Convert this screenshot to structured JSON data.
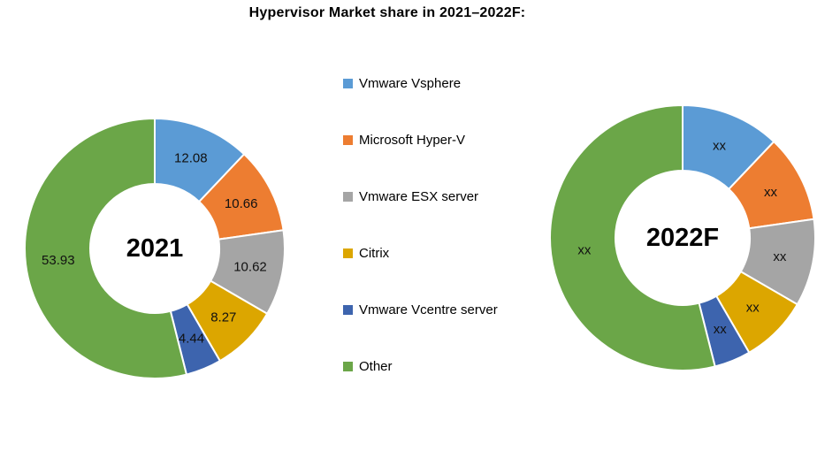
{
  "title": "Hypervisor Market share in 2021–2022F:",
  "legend": {
    "items": [
      {
        "label": "Vmware Vsphere",
        "color": "#5B9BD5"
      },
      {
        "label": "Microsoft Hyper-V",
        "color": "#ED7D31"
      },
      {
        "label": "Vmware ESX server",
        "color": "#A5A5A5"
      },
      {
        "label": "Citrix",
        "color": "#DCA600"
      },
      {
        "label": "Vmware Vcentre server",
        "color": "#3D64AE"
      },
      {
        "label": "Other",
        "color": "#6BA648"
      }
    ]
  },
  "chart_data": [
    {
      "type": "pie",
      "subtype": "donut",
      "center_label": "2021",
      "categories": [
        "Vmware Vsphere",
        "Microsoft Hyper-V",
        "Vmware ESX server",
        "Citrix",
        "Vmware Vcentre server",
        "Other"
      ],
      "values": [
        12.08,
        10.66,
        10.62,
        8.27,
        4.44,
        53.93
      ],
      "data_labels": [
        "12.08",
        "10.66",
        "10.62",
        "8.27",
        "4.44",
        "53.93"
      ],
      "colors": [
        "#5B9BD5",
        "#ED7D31",
        "#A5A5A5",
        "#DCA600",
        "#3D64AE",
        "#6BA648"
      ],
      "start_angle_deg": 0,
      "direction": "clockwise",
      "legend_position": "center-between-charts"
    },
    {
      "type": "pie",
      "subtype": "donut",
      "center_label": "2022F",
      "categories": [
        "Vmware Vsphere",
        "Microsoft Hyper-V",
        "Vmware ESX server",
        "Citrix",
        "Vmware Vcentre server",
        "Other"
      ],
      "values": [
        12.08,
        10.66,
        10.62,
        8.27,
        4.44,
        53.93
      ],
      "note": "numeric values are masked on this chart; every slice is labelled xx, proportions drawn matching 2021",
      "data_labels": [
        "xx",
        "xx",
        "xx",
        "xx",
        "xx",
        "xx"
      ],
      "colors": [
        "#5B9BD5",
        "#ED7D31",
        "#A5A5A5",
        "#DCA600",
        "#3D64AE",
        "#6BA648"
      ],
      "start_angle_deg": 0,
      "direction": "clockwise"
    }
  ]
}
